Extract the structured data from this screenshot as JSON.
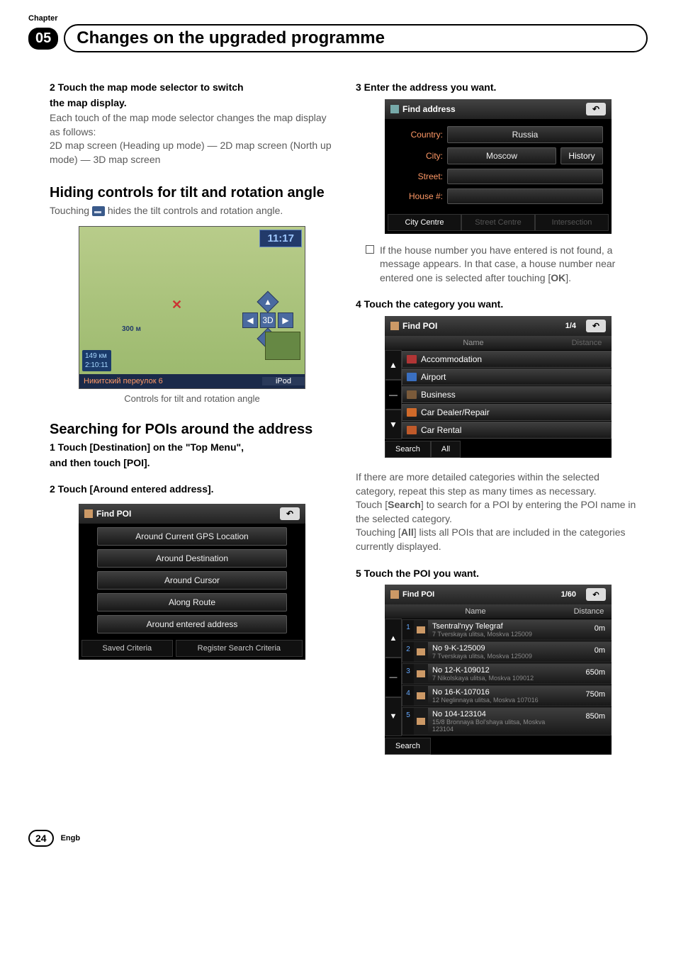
{
  "header": {
    "chapter_label": "Chapter",
    "chapter_num": "05",
    "title": "Changes on the upgraded programme"
  },
  "left": {
    "step2_line1": "2     Touch the map mode selector to switch",
    "step2_line2": "the map display.",
    "step2_body1": "Each touch of the map mode selector changes the map display as follows:",
    "step2_body2": "2D map screen (Heading up mode) — 2D map screen (North up mode) — 3D map screen",
    "section_tilt": "Hiding controls for tilt and rotation angle",
    "tilt_body_a": "Touching ",
    "tilt_body_b": " hides the tilt controls and rotation angle.",
    "map": {
      "time": "11:17",
      "scale": "300 м",
      "info1": "149 км",
      "info2": "2:10:11",
      "bottom_left": "Никитский переулок 6",
      "bottom_right": "iPod"
    },
    "caption": "Controls for tilt and rotation angle",
    "section_poi": "Searching for POIs around the address",
    "poi_step1_a": "1     Touch [Destination] on the \"Top Menu\",",
    "poi_step1_b": "and then touch [POI].",
    "poi_step2": "2     Touch [Around entered address].",
    "findpoi_panel": {
      "title": "Find POI",
      "rows": [
        "Around Current GPS Location",
        "Around Destination",
        "Around Cursor",
        "Along Route",
        "Around entered address"
      ],
      "bottom_left": "Saved Criteria",
      "bottom_right": "Register Search Criteria"
    }
  },
  "right": {
    "step3": "3     Enter the address you want.",
    "findaddr": {
      "title": "Find address",
      "labels": {
        "country": "Country:",
        "city": "City:",
        "street": "Street:",
        "house": "House #:"
      },
      "values": {
        "country": "Russia",
        "city": "Moscow"
      },
      "history": "History",
      "bottom": [
        "City Centre",
        "Street Centre",
        "Intersection"
      ]
    },
    "note_text_a": "If the house number you have entered is not found, a message appears. In that case, a house number near entered one is selected after touching [",
    "note_ok": "OK",
    "note_text_b": "].",
    "step4": "4     Touch the category you want.",
    "poicat": {
      "title": "Find POI",
      "page": "1/4",
      "name_hdr": "Name",
      "dist_hdr": "Distance",
      "items": [
        {
          "label": "Accommodation",
          "color": "#b03535"
        },
        {
          "label": "Airport",
          "color": "#3a6fc0"
        },
        {
          "label": "Business",
          "color": "#7a5a3a"
        },
        {
          "label": "Car Dealer/Repair",
          "color": "#d06a2a"
        },
        {
          "label": "Car Rental",
          "color": "#c05a2a"
        }
      ],
      "bottom": [
        "Search",
        "All"
      ]
    },
    "para1_a": "If there are more detailed categories within the selected category, repeat this step as many times as necessary.",
    "para1_b_pre": "Touch [",
    "para1_b_bold": "Search",
    "para1_b_post": "] to search for a POI by entering the POI name in the selected category.",
    "para1_c_pre": "Touching [",
    "para1_c_bold": "All",
    "para1_c_post": "] lists all POIs that are included in the categories currently displayed.",
    "step5": "5     Touch the POI you want.",
    "poires": {
      "title": "Find POI",
      "page": "1/60",
      "name_hdr": "Name",
      "dist_hdr": "Distance",
      "items": [
        {
          "n": "1",
          "t1": "Tsentral'nyy Telegraf",
          "t2": "7 Tverskaya ulitsa, Moskva 125009",
          "d": "0m"
        },
        {
          "n": "2",
          "t1": "No 9-K-125009",
          "t2": "7 Tverskaya ulitsa, Moskva 125009",
          "d": "0m"
        },
        {
          "n": "3",
          "t1": "No 12-K-109012",
          "t2": "7 Nikolskaya ulitsa, Moskva 109012",
          "d": "650m"
        },
        {
          "n": "4",
          "t1": "No 16-K-107016",
          "t2": "12 Neglinnaya ulitsa, Moskva 107016",
          "d": "750m"
        },
        {
          "n": "5",
          "t1": "No 104-123104",
          "t2": "15/8 Bronnaya Bol'shaya ulitsa, Moskva 123104",
          "d": "850m"
        }
      ],
      "bottom": "Search"
    }
  },
  "footer": {
    "page": "24",
    "lang": "Engb"
  }
}
